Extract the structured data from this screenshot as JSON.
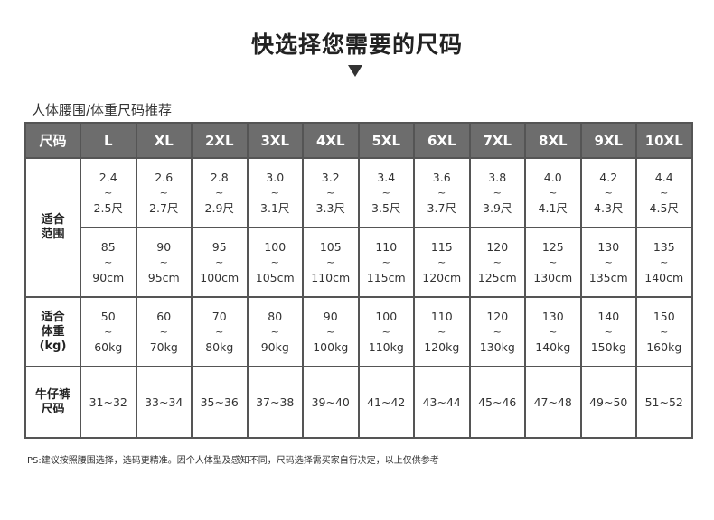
{
  "title": "快选择您需要的尺码",
  "subtitle": "人体腰围/体重尺码推荐",
  "table": {
    "header_label": "尺码",
    "sizes": [
      "L",
      "XL",
      "2XL",
      "3XL",
      "4XL",
      "5XL",
      "6XL",
      "7XL",
      "8XL",
      "9XL",
      "10XL"
    ],
    "range_label_1": "适合",
    "range_label_2": "范围",
    "range_chi_from": [
      "2.4",
      "2.6",
      "2.8",
      "3.0",
      "3.2",
      "3.4",
      "3.6",
      "3.8",
      "4.0",
      "4.2",
      "4.4"
    ],
    "range_chi_to": [
      "2.5尺",
      "2.7尺",
      "2.9尺",
      "3.1尺",
      "3.3尺",
      "3.5尺",
      "3.7尺",
      "3.9尺",
      "4.1尺",
      "4.3尺",
      "4.5尺"
    ],
    "range_cm_from": [
      "85",
      "90",
      "95",
      "100",
      "105",
      "110",
      "115",
      "120",
      "125",
      "130",
      "135"
    ],
    "range_cm_to": [
      "90cm",
      "95cm",
      "100cm",
      "105cm",
      "110cm",
      "115cm",
      "120cm",
      "125cm",
      "130cm",
      "135cm",
      "140cm"
    ],
    "weight_label_1": "适合",
    "weight_label_2": "体重",
    "weight_label_3": "(kg)",
    "weight_from": [
      "50",
      "60",
      "70",
      "80",
      "90",
      "100",
      "110",
      "120",
      "130",
      "140",
      "150"
    ],
    "weight_to": [
      "60kg",
      "70kg",
      "80kg",
      "90kg",
      "100kg",
      "110kg",
      "120kg",
      "130kg",
      "140kg",
      "150kg",
      "160kg"
    ],
    "jeans_label_1": "牛仔裤",
    "jeans_label_2": "尺码",
    "jeans_sizes": [
      "31~32",
      "33~34",
      "35~36",
      "37~38",
      "39~40",
      "41~42",
      "43~44",
      "45~46",
      "47~48",
      "49~50",
      "51~52"
    ],
    "tilde": "~"
  },
  "note": "PS:建议按照腰围选择，选码更精准。因个人体型及感知不同，尺码选择需买家自行决定，以上仅供参考",
  "colors": {
    "header_bg": "#6d6d6d",
    "border": "#555555",
    "text": "#333333"
  }
}
